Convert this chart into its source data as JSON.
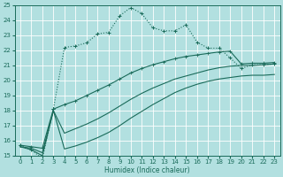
{
  "xlabel": "Humidex (Indice chaleur)",
  "bg_color": "#b2e0e0",
  "grid_color": "#d0ecec",
  "line_color": "#1a6b5a",
  "xlim": [
    -0.5,
    23.5
  ],
  "ylim": [
    15,
    25
  ],
  "xticks": [
    0,
    1,
    2,
    3,
    4,
    5,
    6,
    7,
    8,
    9,
    10,
    11,
    12,
    13,
    14,
    15,
    16,
    17,
    18,
    19,
    20,
    21,
    22,
    23
  ],
  "yticks": [
    15,
    16,
    17,
    18,
    19,
    20,
    21,
    22,
    23,
    24,
    25
  ],
  "line1_x": [
    0,
    1,
    2,
    3,
    4,
    5,
    6,
    7,
    8,
    9,
    10,
    11,
    12,
    13,
    14,
    15,
    16,
    17,
    18,
    19,
    20,
    21,
    22,
    23
  ],
  "line1_y": [
    15.7,
    15.4,
    14.8,
    18.1,
    22.2,
    22.3,
    22.5,
    23.1,
    23.2,
    24.3,
    24.85,
    24.45,
    23.5,
    23.3,
    23.3,
    23.7,
    22.55,
    22.15,
    22.15,
    21.5,
    20.8,
    21.05,
    21.05,
    21.1
  ],
  "line2_x": [
    0,
    1,
    2,
    3,
    4,
    5,
    6,
    7,
    8,
    9,
    10,
    11,
    12,
    13,
    14,
    15,
    16,
    17,
    18,
    19,
    20,
    21,
    22,
    23
  ],
  "line2_y": [
    15.7,
    15.6,
    15.5,
    18.1,
    18.4,
    18.65,
    19.0,
    19.35,
    19.7,
    20.1,
    20.5,
    20.8,
    21.05,
    21.25,
    21.45,
    21.6,
    21.7,
    21.8,
    21.9,
    21.95,
    21.1,
    21.15,
    21.15,
    21.2
  ],
  "line3_x": [
    0,
    1,
    2,
    3,
    4,
    5,
    6,
    7,
    8,
    9,
    10,
    11,
    12,
    13,
    14,
    15,
    16,
    17,
    18,
    19,
    20,
    21,
    22,
    23
  ],
  "line3_y": [
    15.6,
    15.5,
    15.2,
    18.0,
    16.5,
    16.8,
    17.1,
    17.45,
    17.85,
    18.3,
    18.75,
    19.15,
    19.5,
    19.8,
    20.1,
    20.3,
    20.5,
    20.7,
    20.85,
    20.95,
    21.0,
    21.0,
    21.05,
    21.1
  ],
  "line4_x": [
    0,
    1,
    2,
    3,
    4,
    5,
    6,
    7,
    8,
    9,
    10,
    11,
    12,
    13,
    14,
    15,
    16,
    17,
    18,
    19,
    20,
    21,
    22,
    23
  ],
  "line4_y": [
    15.6,
    15.4,
    15.0,
    18.0,
    15.45,
    15.65,
    15.9,
    16.2,
    16.55,
    17.0,
    17.5,
    17.95,
    18.4,
    18.8,
    19.2,
    19.5,
    19.75,
    19.95,
    20.1,
    20.2,
    20.3,
    20.35,
    20.35,
    20.4
  ]
}
